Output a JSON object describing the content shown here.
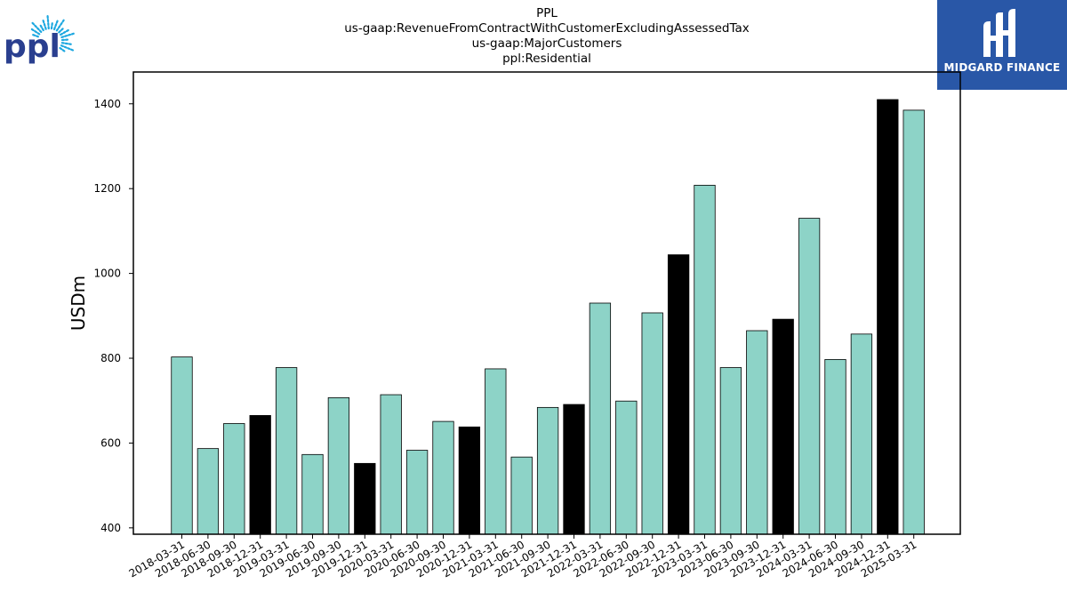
{
  "brand": {
    "left_logo_text": "ppl",
    "right_logo_text": "MIDGARD FINANCE",
    "accent_blue": "#2957a7",
    "ppl_blue": "#2a3f8f",
    "ppl_cyan": "#1ea8e0"
  },
  "chart_data": {
    "type": "bar",
    "title_lines": [
      "PPL",
      "us-gaap:RevenueFromContractWithCustomerExcludingAssessedTax",
      "us-gaap:MajorCustomers",
      "ppl:Residential"
    ],
    "xlabel": "",
    "ylabel": "USDm",
    "ylim": [
      385,
      1475
    ],
    "yticks": [
      400,
      600,
      800,
      1000,
      1200,
      1400
    ],
    "grid": false,
    "legend": "none",
    "colors": {
      "quarter": "#8dd3c7",
      "year_end": "#000000",
      "edge": "#000000"
    },
    "categories": [
      "2018-03-31",
      "2018-06-30",
      "2018-09-30",
      "2018-12-31",
      "2019-03-31",
      "2019-06-30",
      "2019-09-30",
      "2019-12-31",
      "2020-03-31",
      "2020-06-30",
      "2020-09-30",
      "2020-12-31",
      "2021-03-31",
      "2021-06-30",
      "2021-09-30",
      "2021-12-31",
      "2022-03-31",
      "2022-06-30",
      "2022-09-30",
      "2022-12-31",
      "2023-03-31",
      "2023-06-30",
      "2023-09-30",
      "2023-12-31",
      "2024-03-31",
      "2024-06-30",
      "2024-09-30",
      "2024-12-31",
      "2025-03-31"
    ],
    "values": [
      803,
      587,
      646,
      665,
      778,
      573,
      707,
      552,
      714,
      583,
      651,
      638,
      775,
      567,
      684,
      691,
      930,
      699,
      907,
      1044,
      1208,
      778,
      865,
      892,
      1130,
      797,
      857,
      1410,
      1385
    ],
    "highlight": [
      false,
      false,
      false,
      true,
      false,
      false,
      false,
      true,
      false,
      false,
      false,
      true,
      false,
      false,
      false,
      true,
      false,
      false,
      false,
      true,
      false,
      false,
      false,
      true,
      false,
      false,
      false,
      true,
      false
    ]
  }
}
